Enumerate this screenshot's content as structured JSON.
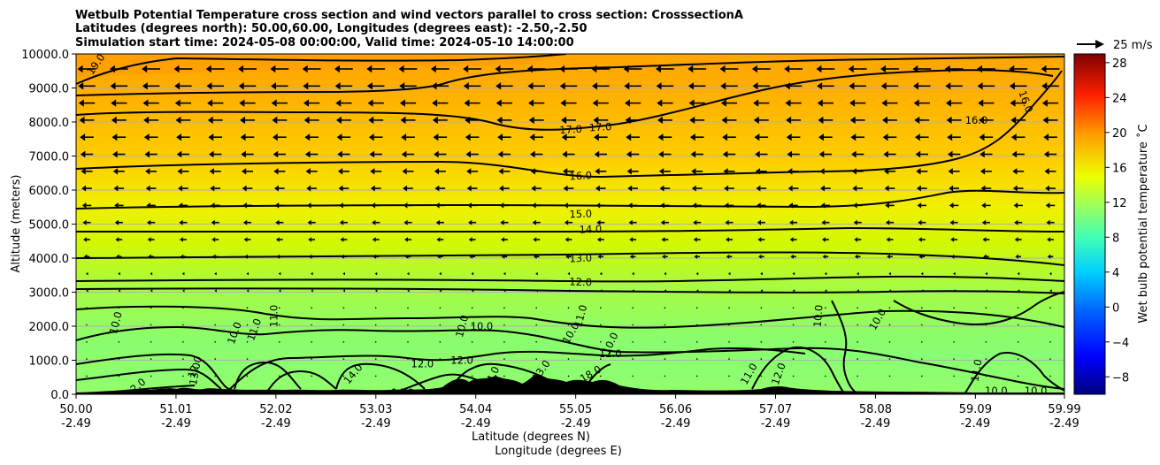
{
  "chart_data": {
    "type": "contour",
    "title": [
      "Wetbulb Potential Temperature cross section and wind vectors parallel to cross section: CrosssectionA",
      "Latitudes (degrees north): 50.00,60.00, Longitudes (degrees east): -2.50,-2.50",
      "Simulation start time: 2024-05-08 00:00:00, Valid time: 2024-05-10 14:00:00"
    ],
    "xlabel_lat": "Latitude (degrees N)",
    "xlabel_lon": "Longitude (degrees E)",
    "ylabel": "Altitude (meters)",
    "x_ticks": [
      {
        "lat": "50.00",
        "lon": "-2.49"
      },
      {
        "lat": "51.01",
        "lon": "-2.49"
      },
      {
        "lat": "52.02",
        "lon": "-2.49"
      },
      {
        "lat": "53.03",
        "lon": "-2.49"
      },
      {
        "lat": "54.04",
        "lon": "-2.49"
      },
      {
        "lat": "55.05",
        "lon": "-2.49"
      },
      {
        "lat": "56.06",
        "lon": "-2.49"
      },
      {
        "lat": "57.07",
        "lon": "-2.49"
      },
      {
        "lat": "58.08",
        "lon": "-2.49"
      },
      {
        "lat": "59.09",
        "lon": "-2.49"
      },
      {
        "lat": "59.99",
        "lon": "-2.49"
      }
    ],
    "y_ticks": [
      "0.0",
      "1000.0",
      "2000.0",
      "3000.0",
      "4000.0",
      "5000.0",
      "6000.0",
      "7000.0",
      "8000.0",
      "9000.0",
      "10000.0"
    ],
    "ylim": [
      0,
      10000
    ],
    "grid": "horizontal",
    "colorbar": {
      "label": "Wet bulb potential temperature ˚C",
      "ticks": [
        "−8",
        "−4",
        "0",
        "4",
        "8",
        "12",
        "16",
        "20",
        "24",
        "28"
      ],
      "range": [
        -10,
        29
      ],
      "colormap": "jet"
    },
    "vector_key": "25 m/s",
    "contour_labels": [
      {
        "text": "19.0",
        "lat": 50.2,
        "alt": 9700,
        "angle": -55
      },
      {
        "text": "17.0",
        "lat": 55.0,
        "alt": 7780,
        "angle": -3
      },
      {
        "text": "17.0",
        "lat": 55.3,
        "alt": 7850,
        "angle": -3
      },
      {
        "text": "16.0",
        "lat": 55.1,
        "alt": 6420,
        "angle": -3
      },
      {
        "text": "16.0",
        "lat": 59.1,
        "alt": 8050,
        "angle": 0
      },
      {
        "text": "16.0",
        "lat": 59.6,
        "alt": 8600,
        "angle": 70
      },
      {
        "text": "15.0",
        "lat": 55.1,
        "alt": 5300,
        "angle": -2
      },
      {
        "text": "14.0",
        "lat": 55.2,
        "alt": 4850,
        "angle": -2
      },
      {
        "text": "13.0",
        "lat": 55.1,
        "alt": 4000,
        "angle": -2
      },
      {
        "text": "12.0",
        "lat": 55.1,
        "alt": 3300,
        "angle": 2
      },
      {
        "text": "12.0",
        "lat": 55.4,
        "alt": 1200,
        "angle": 0
      },
      {
        "text": "12.0",
        "lat": 53.5,
        "alt": 900,
        "angle": 0
      },
      {
        "text": "12.0",
        "lat": 53.9,
        "alt": 1000,
        "angle": 0
      },
      {
        "text": "12.0",
        "lat": 57.1,
        "alt": 600,
        "angle": -70
      },
      {
        "text": "12.0",
        "lat": 51.2,
        "alt": 800,
        "angle": -70
      },
      {
        "text": "11.0",
        "lat": 52.0,
        "alt": 2300,
        "angle": -90
      },
      {
        "text": "11.0",
        "lat": 55.1,
        "alt": 2300,
        "angle": -75
      },
      {
        "text": "11.0",
        "lat": 59.1,
        "alt": 700,
        "angle": -80
      },
      {
        "text": "11.0",
        "lat": 56.8,
        "alt": 600,
        "angle": -60
      },
      {
        "text": "11.0",
        "lat": 51.8,
        "alt": 1900,
        "angle": -70
      },
      {
        "text": "10.0",
        "lat": 50.4,
        "alt": 2100,
        "angle": -75
      },
      {
        "text": "10.0",
        "lat": 51.6,
        "alt": 1800,
        "angle": -70
      },
      {
        "text": "10.0",
        "lat": 54.1,
        "alt": 2000,
        "angle": 0
      },
      {
        "text": "10.0",
        "lat": 55.0,
        "alt": 1800,
        "angle": -60
      },
      {
        "text": "10.0",
        "lat": 55.4,
        "alt": 1500,
        "angle": -65
      },
      {
        "text": "10.0",
        "lat": 57.5,
        "alt": 2300,
        "angle": -85
      },
      {
        "text": "10.0",
        "lat": 58.1,
        "alt": 2200,
        "angle": -60
      },
      {
        "text": "10.0",
        "lat": 59.3,
        "alt": 100,
        "angle": 0
      },
      {
        "text": "10.0",
        "lat": 59.7,
        "alt": 100,
        "angle": 0
      },
      {
        "text": "10.0",
        "lat": 53.9,
        "alt": 2000,
        "angle": -75
      },
      {
        "text": "14.0",
        "lat": 52.8,
        "alt": 600,
        "angle": -50
      },
      {
        "text": "14.0",
        "lat": 54.2,
        "alt": 500,
        "angle": -65
      },
      {
        "text": "13.0",
        "lat": 54.7,
        "alt": 700,
        "angle": -55
      },
      {
        "text": "13.0",
        "lat": 51.2,
        "alt": 600,
        "angle": -80
      },
      {
        "text": "14.0",
        "lat": 53.3,
        "alt": 50,
        "angle": 0
      },
      {
        "text": "18.0",
        "lat": 55.2,
        "alt": 600,
        "angle": -30
      },
      {
        "text": "12.0",
        "lat": 50.6,
        "alt": 200,
        "angle": -40
      }
    ]
  }
}
